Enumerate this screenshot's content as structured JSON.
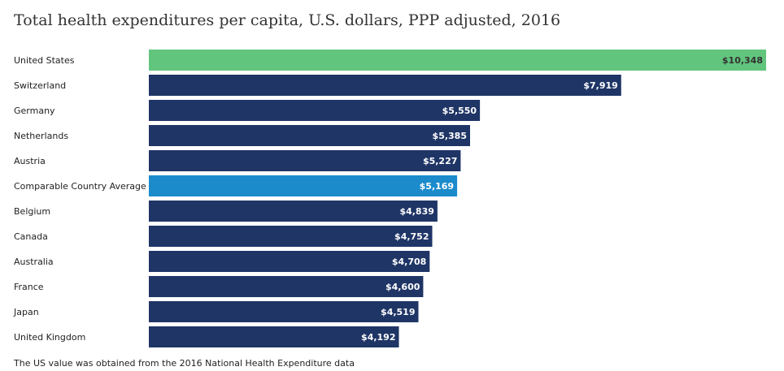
{
  "chart_data": {
    "type": "bar",
    "orientation": "horizontal",
    "title": "Total health expenditures per capita, U.S. dollars, PPP adjusted, 2016",
    "categories": [
      "United States",
      "Switzerland",
      "Germany",
      "Netherlands",
      "Austria",
      "Comparable Country Average",
      "Belgium",
      "Canada",
      "Australia",
      "France",
      "Japan",
      "United Kingdom"
    ],
    "values": [
      10348,
      7919,
      5550,
      5385,
      5227,
      5169,
      4839,
      4752,
      4708,
      4600,
      4519,
      4192
    ],
    "value_labels": [
      "$10,348",
      "$7,919",
      "$5,550",
      "$5,385",
      "$5,227",
      "$5,169",
      "$4,839",
      "$4,752",
      "$4,708",
      "$4,600",
      "$4,519",
      "$4,192"
    ],
    "xlim": [
      0,
      10348
    ],
    "xlabel": "",
    "ylabel": "",
    "grid": false,
    "colors": {
      "default": "#1f3566",
      "highlight_us": "#62c57e",
      "highlight_average": "#1b8bcc",
      "label_on_dark": "#ffffff",
      "label_on_light": "#333333"
    },
    "highlight": {
      "United States": "highlight_us",
      "Comparable Country Average": "highlight_average"
    }
  },
  "footnote": "The US value was obtained from the 2016 National Health Expenditure data"
}
